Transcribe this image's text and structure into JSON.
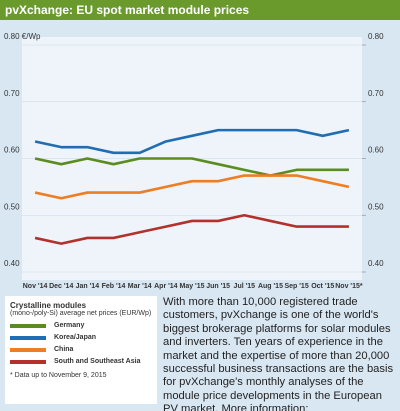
{
  "chart_data": {
    "type": "line",
    "title": "pvXchange: EU spot market module prices",
    "categories": [
      "Nov '14",
      "Dec '14",
      "Jan '14",
      "Feb '14",
      "Mar '14",
      "Apr '14",
      "May '15",
      "Jun '15",
      "Jul '15",
      "Aug '15",
      "Sep '15",
      "Oct '15",
      "Nov '15*"
    ],
    "series": [
      {
        "name": "Germany",
        "color": "#5b8c1f",
        "values": [
          0.6,
          0.59,
          0.6,
          0.59,
          0.6,
          0.6,
          0.6,
          0.59,
          0.58,
          0.57,
          0.58,
          0.58,
          0.58
        ]
      },
      {
        "name": "Korea/Japan",
        "color": "#1f6db3",
        "values": [
          0.63,
          0.62,
          0.62,
          0.61,
          0.61,
          0.63,
          0.64,
          0.65,
          0.65,
          0.65,
          0.65,
          0.64,
          0.65
        ]
      },
      {
        "name": "China",
        "color": "#ef7d22",
        "values": [
          0.54,
          0.53,
          0.54,
          0.54,
          0.54,
          0.55,
          0.56,
          0.56,
          0.57,
          0.57,
          0.57,
          0.56,
          0.55
        ]
      },
      {
        "name": "South and Southeast Asia",
        "color": "#b3312c",
        "values": [
          0.46,
          0.45,
          0.46,
          0.46,
          0.47,
          0.48,
          0.49,
          0.49,
          0.5,
          0.49,
          0.48,
          0.48,
          0.48
        ]
      }
    ],
    "ylim": [
      0.4,
      0.8
    ],
    "yticks": [
      {
        "value": 0.8,
        "label": "0.80 €/Wp"
      },
      {
        "value": 0.7,
        "label": "0.70"
      },
      {
        "value": 0.6,
        "label": "0.60"
      },
      {
        "value": 0.5,
        "label": "0.50"
      },
      {
        "value": 0.4,
        "label": "0.40"
      }
    ],
    "y2lim": [
      0.4,
      0.8
    ],
    "y2ticks": [
      {
        "value": 0.8,
        "label": "0.80"
      },
      {
        "value": 0.7,
        "label": "0.70"
      },
      {
        "value": 0.6,
        "label": "0.60"
      },
      {
        "value": 0.5,
        "label": "0.50"
      },
      {
        "value": 0.4,
        "label": "0.40"
      }
    ],
    "grid": true,
    "legend_title": "Crystalline modules",
    "legend_subtitle": "(mono-/poly-Si) average net prices (EUR/Wp)",
    "footnote": "* Data up to November 9, 2015",
    "text": "With more than 10,000 registered trade customers, pvXchange is one of the world's biggest brokerage platforms for solar modules and inverters. Ten years of experience in the market and the expertise of more than 20,000 successful business transactions are the basis for pvXchange's monthly analyses of the module price developments in the European PV market. More information: www.pvXchange.com"
  }
}
